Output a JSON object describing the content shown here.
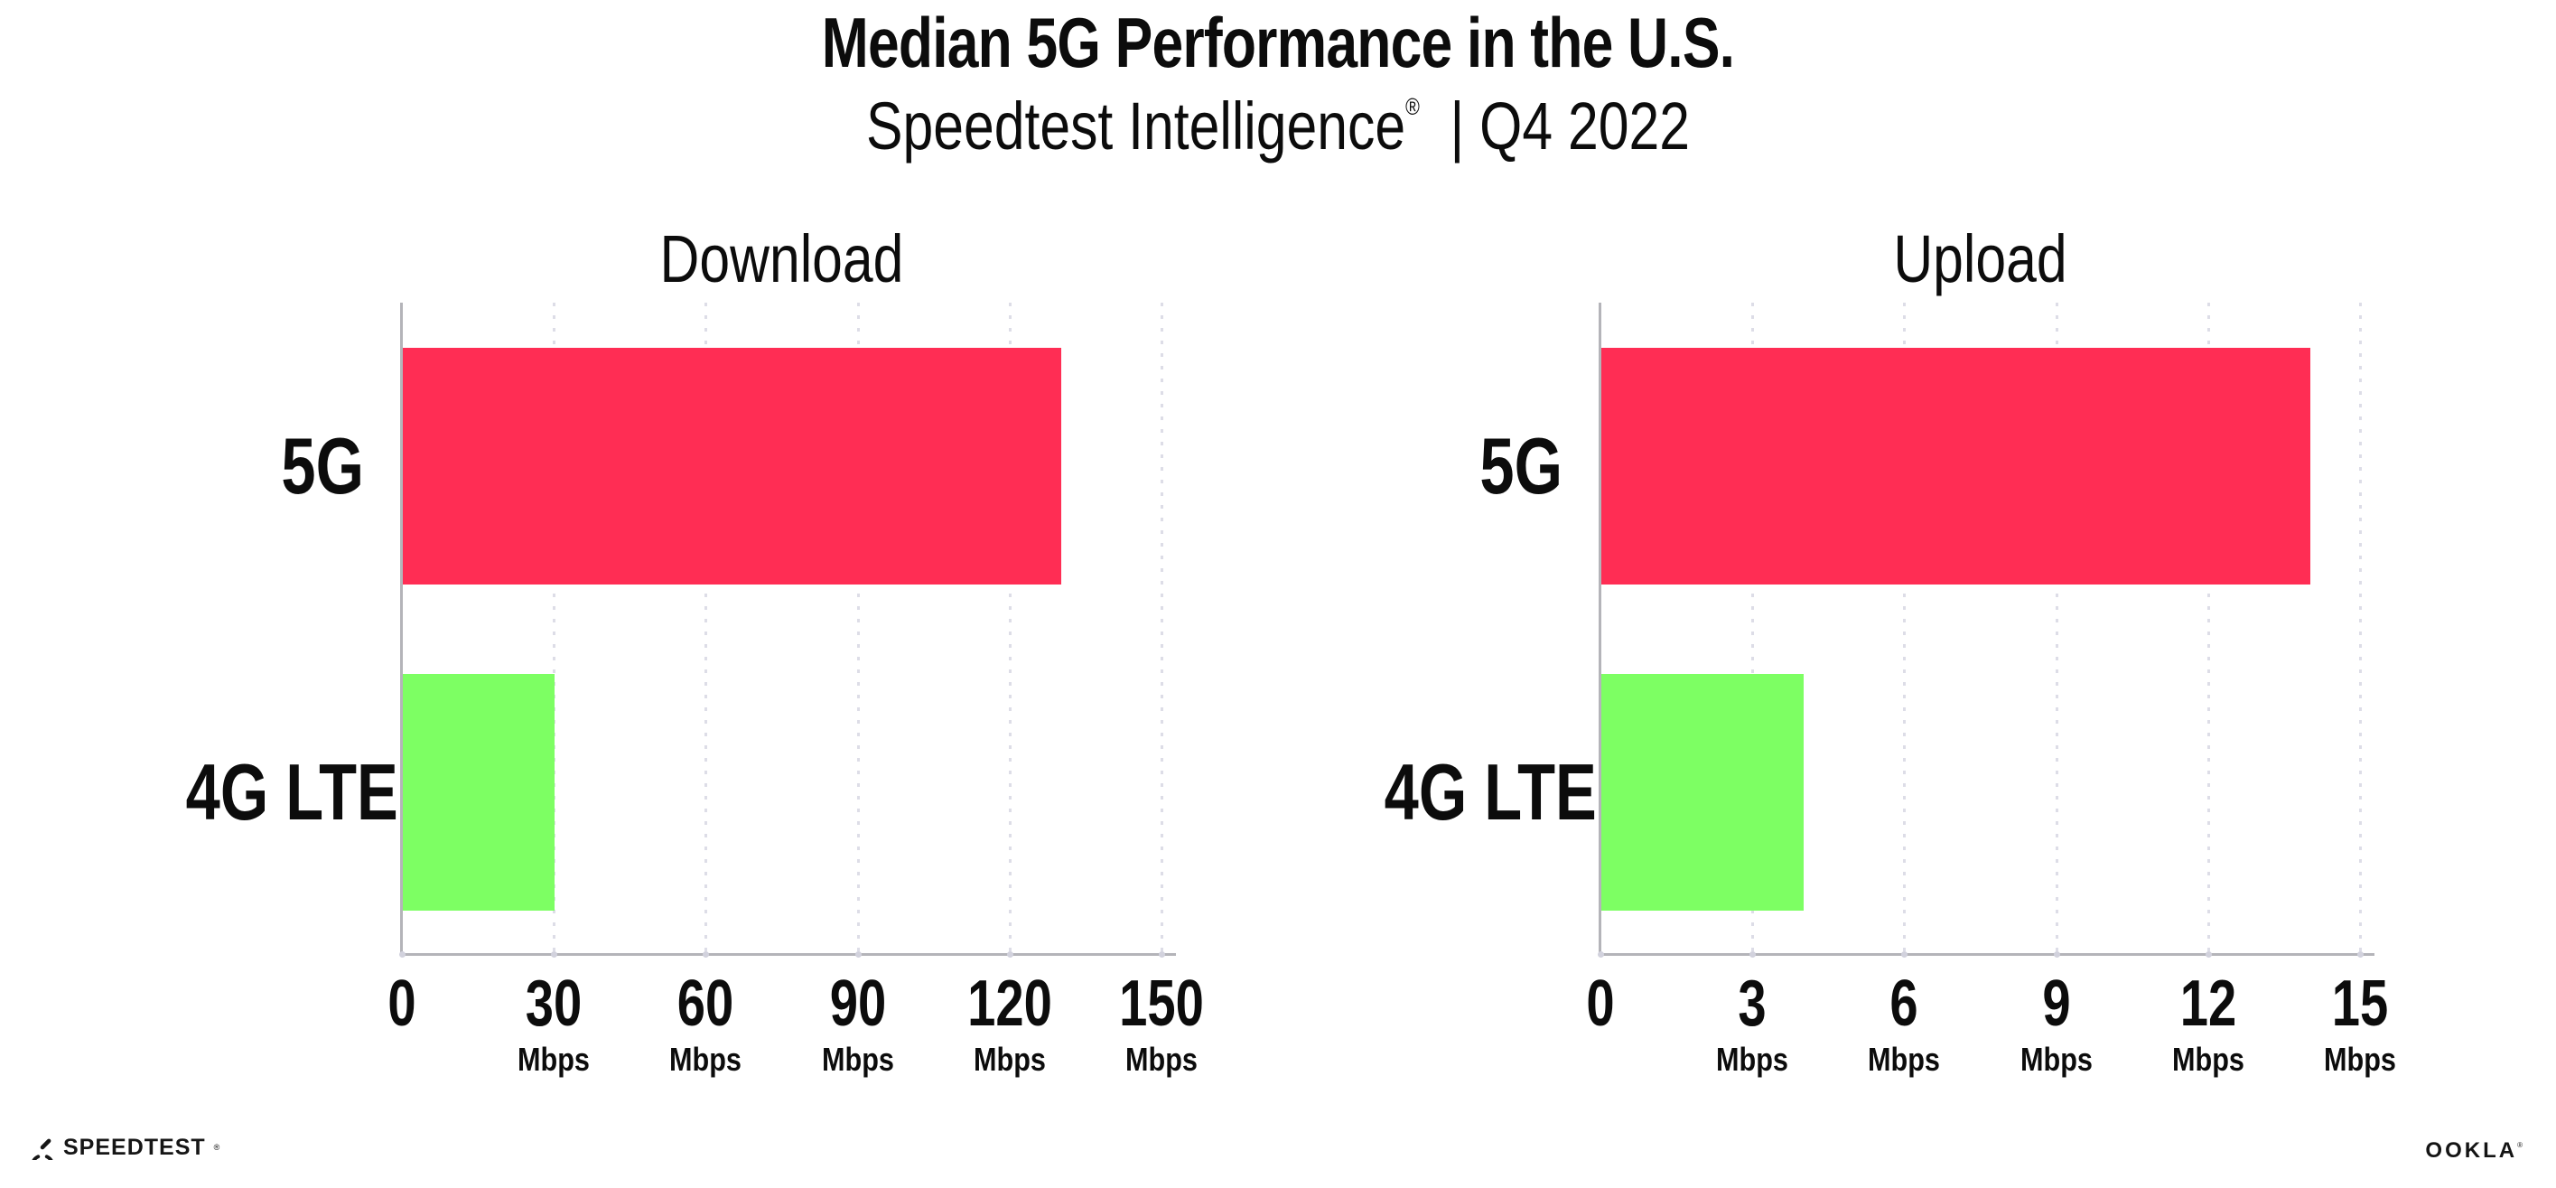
{
  "header": {
    "title": "Median 5G Performance in the U.S.",
    "subtitle_product": "Speedtest Intelligence",
    "subtitle_reg": "®",
    "subtitle_rest": "| Q4 2022"
  },
  "colors": {
    "bar_5g": "#ff2d54",
    "bar_4g_lte": "#7dff63",
    "axis": "#b4b4b9",
    "gridline": "#dddde7",
    "text": "#0c0c0c"
  },
  "chart_data": [
    {
      "type": "bar",
      "orientation": "horizontal",
      "title": "Download",
      "categories": [
        "5G",
        "4G LTE"
      ],
      "values": [
        130,
        30
      ],
      "unit": "Mbps",
      "xlim": [
        0,
        150
      ],
      "xticks": [
        0,
        30,
        60,
        90,
        120,
        150
      ],
      "bar_colors": [
        "#ff2d54",
        "#7dff63"
      ],
      "grid": "dotted-vertical",
      "legend": "none"
    },
    {
      "type": "bar",
      "orientation": "horizontal",
      "title": "Upload",
      "categories": [
        "5G",
        "4G LTE"
      ],
      "values": [
        14,
        4
      ],
      "unit": "Mbps",
      "xlim": [
        0,
        15
      ],
      "xticks": [
        0,
        3,
        6,
        9,
        12,
        15
      ],
      "bar_colors": [
        "#ff2d54",
        "#7dff63"
      ],
      "grid": "dotted-vertical",
      "legend": "none"
    }
  ],
  "footer": {
    "speedtest_wordmark": "SPEEDTEST",
    "speedtest_reg": "®",
    "ookla_wordmark": "OOKLA",
    "ookla_reg": "®"
  }
}
